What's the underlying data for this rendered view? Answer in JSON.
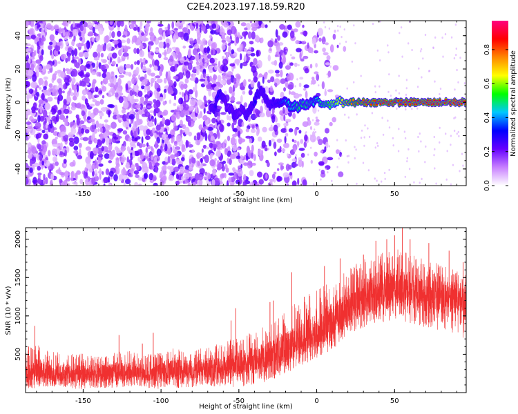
{
  "title": "C2E4.2023.197.18.59.R20",
  "chart_data": [
    {
      "type": "heatmap",
      "xlabel": "Height of straight line (km)",
      "ylabel": "Frequency (Hz)",
      "xlim": [
        -187,
        96
      ],
      "ylim": [
        -50,
        49
      ],
      "xticks": [
        -150,
        -100,
        -50,
        0,
        50
      ],
      "xtick_labels": [
        "-150",
        "-100",
        "-50",
        "0",
        "50"
      ],
      "yticks": [
        -40,
        -20,
        0,
        20,
        40
      ],
      "ytick_labels": [
        "-40",
        "-20",
        "0",
        "20",
        "40"
      ],
      "ridge_x": [
        -68,
        -66,
        -64,
        -62,
        -60,
        -58,
        -55,
        -53,
        -50,
        -48,
        -45,
        -42,
        -40,
        -38,
        -35,
        -32,
        -30,
        -27,
        -25,
        -22,
        -20,
        -17,
        -15,
        -12,
        -10,
        -7,
        -5,
        -2,
        0,
        3,
        6,
        8,
        10,
        13,
        15,
        18,
        20,
        25,
        30,
        40,
        50,
        60,
        70,
        80,
        90,
        96
      ],
      "ridge_y": [
        -3,
        -6,
        3,
        6,
        2,
        -2,
        -4,
        -8,
        -6,
        -4,
        -8,
        -3,
        0,
        5,
        7,
        1,
        -2,
        0,
        -2,
        1,
        2,
        -3,
        -2,
        -3,
        -1,
        -2,
        -1,
        0,
        2,
        -1,
        -1,
        -2,
        -1,
        0,
        1,
        -1,
        0,
        0,
        0,
        0,
        0,
        0,
        0,
        0,
        0,
        0
      ],
      "ridge_amplitude": [
        0.2,
        0.25,
        0.3,
        0.3,
        0.25,
        0.2,
        0.2,
        0.25,
        0.2,
        0.2,
        0.25,
        0.25,
        0.3,
        0.3,
        0.25,
        0.25,
        0.25,
        0.3,
        0.3,
        0.4,
        0.45,
        0.45,
        0.45,
        0.5,
        0.5,
        0.5,
        0.5,
        0.45,
        0.45,
        0.5,
        0.55,
        0.55,
        0.6,
        0.6,
        0.65,
        0.7,
        0.75,
        0.8,
        0.82,
        0.85,
        0.85,
        0.86,
        0.86,
        0.87,
        0.88,
        0.88
      ],
      "noise_extent_x": [
        -187,
        -20
      ],
      "colorbar": {
        "label": "Normalized spectral amplitude",
        "range": [
          0.0,
          0.97
        ],
        "ticks": [
          0.0,
          0.2,
          0.4,
          0.6,
          0.8
        ],
        "tick_labels": [
          "0.0",
          "0.2",
          "0.4",
          "0.6",
          "0.8"
        ],
        "colors": [
          "#ffffff",
          "#c880ff",
          "#6600ff",
          "#0000ff",
          "#00c8ff",
          "#00ff00",
          "#ffff00",
          "#ff8800",
          "#ff0000",
          "#ff0080"
        ]
      }
    },
    {
      "type": "line",
      "xlabel": "Height of straight line (km)",
      "ylabel": "SNR (10 * v/v)",
      "xlim": [
        -187,
        96
      ],
      "ylim": [
        0,
        2150
      ],
      "xticks": [
        -150,
        -100,
        -50,
        0,
        50
      ],
      "xtick_labels": [
        "-150",
        "-100",
        "-50",
        "0",
        "50"
      ],
      "yticks": [
        500,
        1000,
        1500,
        2000
      ],
      "ytick_labels": [
        "500",
        "1000",
        "1500",
        "2000"
      ],
      "color": "#f03030",
      "series": [
        {
          "name": "SNR",
          "x": [
            -187,
            -180,
            -170,
            -160,
            -150,
            -140,
            -130,
            -120,
            -110,
            -100,
            -90,
            -80,
            -70,
            -60,
            -50,
            -40,
            -30,
            -20,
            -10,
            0,
            10,
            20,
            30,
            40,
            50,
            60,
            70,
            80,
            90,
            96
          ],
          "low": [
            40,
            60,
            80,
            60,
            40,
            60,
            60,
            80,
            60,
            40,
            60,
            60,
            80,
            80,
            60,
            100,
            150,
            250,
            350,
            450,
            550,
            750,
            850,
            900,
            950,
            900,
            850,
            800,
            750,
            700
          ],
          "high": [
            550,
            650,
            550,
            500,
            520,
            480,
            520,
            550,
            500,
            520,
            600,
            550,
            600,
            650,
            750,
            800,
            900,
            1050,
            1250,
            1350,
            1450,
            1600,
            1750,
            1800,
            1900,
            1800,
            1750,
            1700,
            1650,
            1600
          ],
          "mid": [
            250,
            300,
            260,
            250,
            240,
            260,
            260,
            270,
            260,
            270,
            300,
            300,
            320,
            340,
            380,
            430,
            500,
            580,
            700,
            800,
            950,
            1100,
            1250,
            1300,
            1350,
            1350,
            1300,
            1250,
            1220,
            1200
          ],
          "peaks": [
            {
              "x": -185,
              "y": 600
            },
            {
              "x": -181,
              "y": 870
            },
            {
              "x": -127,
              "y": 750
            },
            {
              "x": -112,
              "y": 640
            },
            {
              "x": -105,
              "y": 780
            },
            {
              "x": -55,
              "y": 940
            },
            {
              "x": -52,
              "y": 1100
            },
            {
              "x": -30,
              "y": 1180
            },
            {
              "x": -28,
              "y": 1200
            },
            {
              "x": -16,
              "y": 1570
            },
            {
              "x": -8,
              "y": 1250
            },
            {
              "x": 5,
              "y": 1650
            },
            {
              "x": 15,
              "y": 1750
            },
            {
              "x": 30,
              "y": 1800
            },
            {
              "x": 38,
              "y": 1980
            },
            {
              "x": 45,
              "y": 2000
            },
            {
              "x": 50,
              "y": 2050
            },
            {
              "x": 55,
              "y": 2150
            },
            {
              "x": 60,
              "y": 2000
            },
            {
              "x": 72,
              "y": 1950
            },
            {
              "x": 85,
              "y": 1850
            },
            {
              "x": 94,
              "y": 1700
            }
          ]
        }
      ]
    }
  ]
}
